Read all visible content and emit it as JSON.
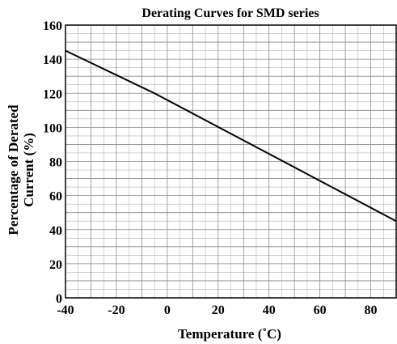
{
  "chart_data": {
    "type": "line",
    "title": "Derating Curves for SMD series",
    "xlabel": "Temperature (˚C)",
    "ylabel_lines": [
      "Percentage of Derated",
      "Current (%)"
    ],
    "xlim": [
      -40,
      90
    ],
    "ylim": [
      0,
      160
    ],
    "x_ticks": [
      -40,
      -20,
      0,
      20,
      40,
      60,
      80
    ],
    "y_ticks": [
      0,
      20,
      40,
      60,
      80,
      100,
      120,
      140,
      160
    ],
    "grid": true,
    "series": [
      {
        "x": [
          -40,
          -5,
          90
        ],
        "y": [
          145,
          120,
          45
        ]
      }
    ]
  }
}
